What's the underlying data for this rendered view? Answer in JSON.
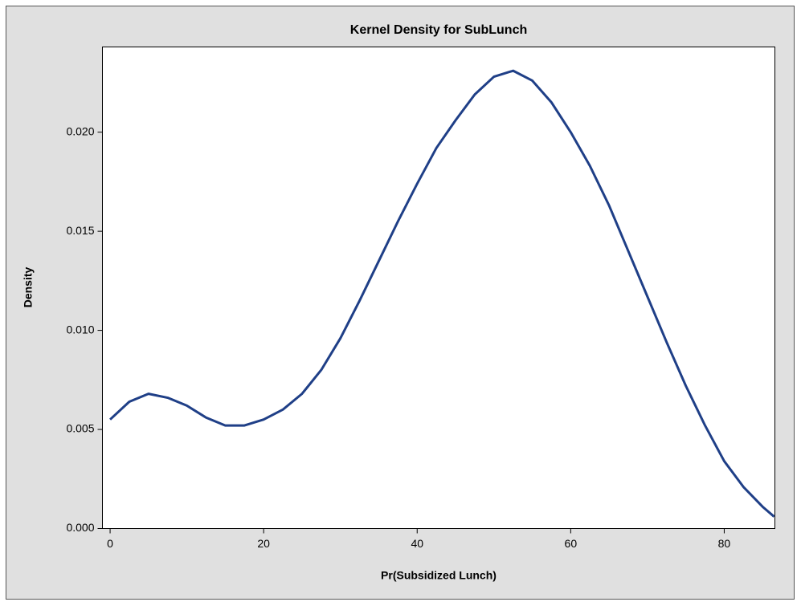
{
  "chart_data": {
    "type": "line",
    "title": "Kernel Density for SubLunch",
    "x_label": "Pr(Subsidized Lunch)",
    "y_label": "Density",
    "x": [
      0,
      2.5,
      5,
      7.5,
      10,
      12.5,
      15,
      17.5,
      20,
      22.5,
      25,
      27.5,
      30,
      32.5,
      35,
      37.5,
      40,
      42.5,
      45,
      47.5,
      50,
      52.5,
      55,
      57.5,
      60,
      62.5,
      65,
      67.5,
      70,
      72.5,
      75,
      77.5,
      80,
      82.5,
      85,
      86.5
    ],
    "series": [
      {
        "name": "Density",
        "color": "#1f3f87",
        "values": [
          0.0055,
          0.0064,
          0.0068,
          0.0066,
          0.0062,
          0.0056,
          0.0052,
          0.0052,
          0.0055,
          0.006,
          0.0068,
          0.008,
          0.0096,
          0.0115,
          0.0135,
          0.0155,
          0.0174,
          0.0192,
          0.0206,
          0.0219,
          0.0228,
          0.0231,
          0.0226,
          0.0215,
          0.02,
          0.0183,
          0.0163,
          0.014,
          0.0117,
          0.0094,
          0.0072,
          0.0052,
          0.0034,
          0.0021,
          0.0011,
          0.0006
        ]
      }
    ],
    "xlim": [
      -1,
      86.6
    ],
    "ylim": [
      0,
      0.0243
    ],
    "xticks": [
      0,
      20,
      40,
      60,
      80
    ],
    "yticks": [
      {
        "value": 0,
        "label": "0.000"
      },
      {
        "value": 0.005,
        "label": "0.005"
      },
      {
        "value": 0.01,
        "label": "0.010"
      },
      {
        "value": 0.015,
        "label": "0.015"
      },
      {
        "value": 0.02,
        "label": "0.020"
      }
    ]
  }
}
